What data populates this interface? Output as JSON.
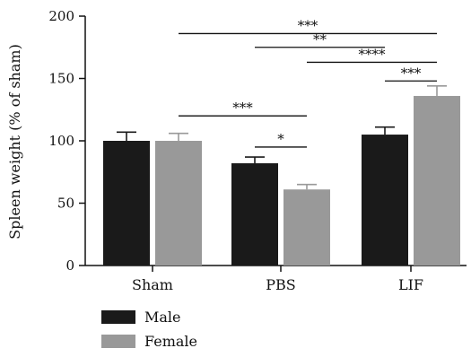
{
  "chart_data": {
    "type": "bar",
    "title": "",
    "xlabel": "",
    "ylabel": "Spleen weight (% of sham)",
    "categories": [
      "Sham",
      "PBS",
      "LIF"
    ],
    "ylim": [
      0,
      200
    ],
    "yticks": [
      0,
      50,
      100,
      150,
      200
    ],
    "series": [
      {
        "name": "Male",
        "color": "#1a1a1a",
        "values": [
          100,
          82,
          105
        ],
        "errors": [
          7,
          5,
          6
        ]
      },
      {
        "name": "Female",
        "color": "#999999",
        "values": [
          100,
          61,
          136
        ],
        "errors": [
          6,
          4,
          8
        ]
      }
    ],
    "significance": [
      {
        "label": "***",
        "from": [
          0,
          1
        ],
        "to": [
          2,
          1
        ],
        "y": 186
      },
      {
        "label": "**",
        "from": [
          1,
          0
        ],
        "to": [
          2,
          0
        ],
        "y": 175
      },
      {
        "label": "****",
        "from": [
          1,
          1
        ],
        "to": [
          2,
          1
        ],
        "y": 163
      },
      {
        "label": "***",
        "from": [
          2,
          0
        ],
        "to": [
          2,
          1
        ],
        "y": 148
      },
      {
        "label": "***",
        "from": [
          0,
          1
        ],
        "to": [
          1,
          1
        ],
        "y": 120
      },
      {
        "label": "*",
        "from": [
          1,
          0
        ],
        "to": [
          1,
          1
        ],
        "y": 95
      }
    ],
    "legend": {
      "position": "bottom-left"
    }
  }
}
